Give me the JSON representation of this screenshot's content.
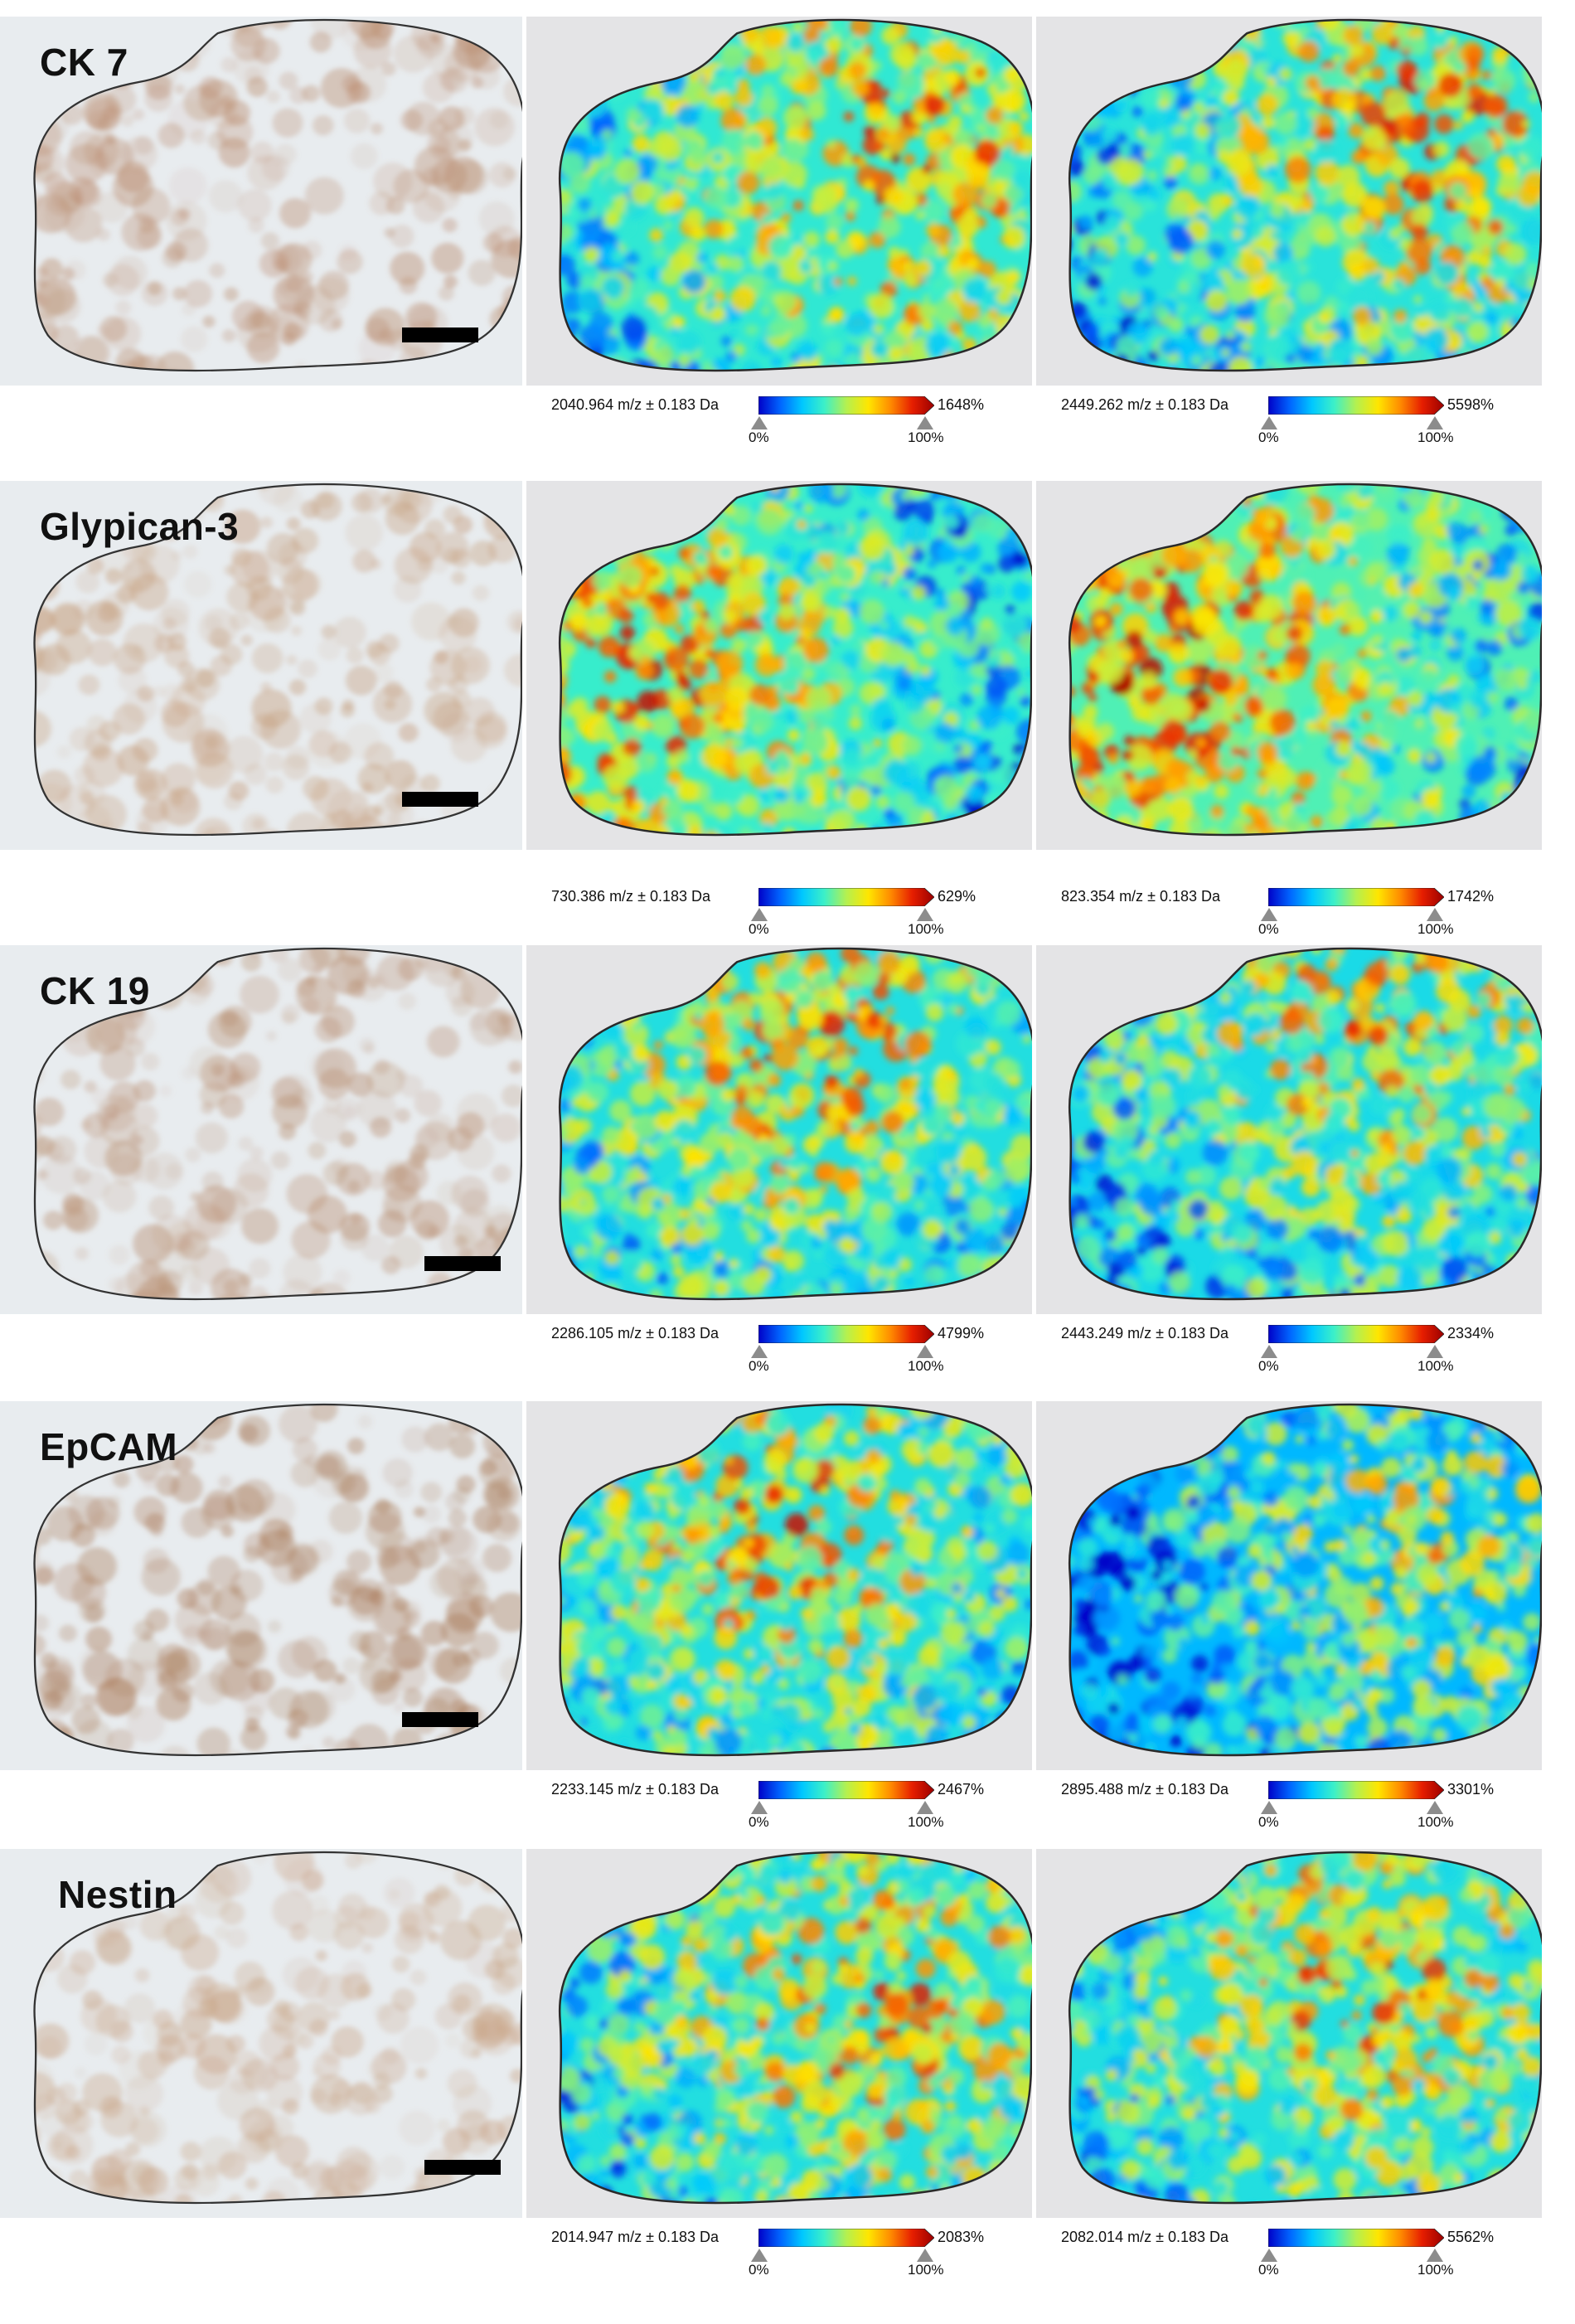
{
  "rows": [
    {
      "marker": "CK 7",
      "stain": "#b98a6c",
      "maps": [
        {
          "mz": "2040.964 m/z ± 0.183 Da",
          "max_pct": "1648%",
          "min_label": "0%",
          "max_label": "100%"
        },
        {
          "mz": "2449.262 m/z ± 0.183 Da",
          "max_pct": "5598%",
          "min_label": "0%",
          "max_label": "100%"
        }
      ]
    },
    {
      "marker": "Glypican-3",
      "stain": "#c49a78",
      "maps": [
        {
          "mz": "730.386 m/z ± 0.183 Da",
          "max_pct": "629%",
          "min_label": "0%",
          "max_label": "100%"
        },
        {
          "mz": "823.354 m/z ± 0.183 Da",
          "max_pct": "1742%",
          "min_label": "0%",
          "max_label": "100%"
        }
      ]
    },
    {
      "marker": "CK 19",
      "stain": "#b88e70",
      "maps": [
        {
          "mz": "2286.105 m/z ± 0.183 Da",
          "max_pct": "4799%",
          "min_label": "0%",
          "max_label": "100%"
        },
        {
          "mz": "2443.249 m/z ± 0.183 Da",
          "max_pct": "2334%",
          "min_label": "0%",
          "max_label": "100%"
        }
      ]
    },
    {
      "marker": "EpCAM",
      "stain": "#a97a58",
      "maps": [
        {
          "mz": "2233.145 m/z ± 0.183 Da",
          "max_pct": "2467%",
          "min_label": "0%",
          "max_label": "100%"
        },
        {
          "mz": "2895.488 m/z ± 0.183 Da",
          "max_pct": "3301%",
          "min_label": "0%",
          "max_label": "100%"
        }
      ]
    },
    {
      "marker": "Nestin",
      "stain": "#c9a588",
      "maps": [
        {
          "mz": "2014.947 m/z ± 0.183 Da",
          "max_pct": "2083%",
          "min_label": "0%",
          "max_label": "100%"
        },
        {
          "mz": "2082.014 m/z ± 0.183 Da",
          "max_pct": "5562%",
          "min_label": "0%",
          "max_label": "100%"
        }
      ]
    }
  ],
  "colors": {
    "background_tissue": "#dde3ea",
    "outline": "#2a2a2a",
    "colormap": [
      "#0000c8",
      "#0066ff",
      "#00c8ff",
      "#3cf0c8",
      "#b4f050",
      "#ffe600",
      "#ff8c00",
      "#e61e00",
      "#9b0000"
    ]
  }
}
